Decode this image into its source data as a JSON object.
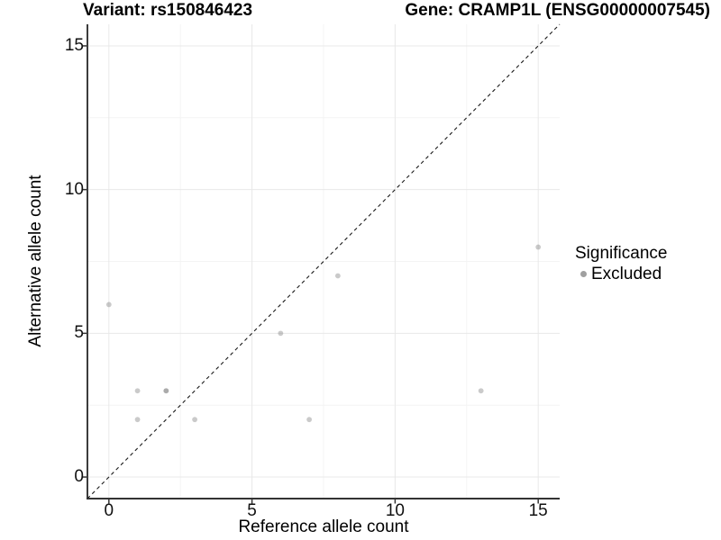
{
  "colors": {
    "background": "#ffffff",
    "grid_major": "#e8e8e8",
    "grid_minor": "#f4f4f4",
    "axis_line": "#333333",
    "tick_mark": "#333333",
    "identity_line": "#1a1a1a",
    "point_fill": "#808080",
    "legend_swatch": "#a0a0a0",
    "text": "#000000"
  },
  "chart_data": {
    "type": "scatter",
    "title_left": "Variant: rs150846423",
    "title_right": "Gene: CRAMP1L (ENSG00000007545)",
    "xlabel": "Reference allele count",
    "ylabel": "Alternative allele count",
    "xlim": [
      -0.75,
      15.75
    ],
    "ylim": [
      -0.75,
      15.75
    ],
    "xticks": [
      0,
      5,
      10,
      15
    ],
    "yticks": [
      0,
      5,
      10,
      15
    ],
    "minor_gridlines_x": [
      2.5,
      7.5,
      12.5
    ],
    "minor_gridlines_y": [
      2.5,
      7.5,
      12.5
    ],
    "grid": "major+minor",
    "identity_line": {
      "style": "dashed",
      "slope": 1,
      "intercept": 0
    },
    "points": [
      {
        "x": 0,
        "y": 6
      },
      {
        "x": 1,
        "y": 2
      },
      {
        "x": 1,
        "y": 3
      },
      {
        "x": 2,
        "y": 3
      },
      {
        "x": 2,
        "y": 3
      },
      {
        "x": 3,
        "y": 2
      },
      {
        "x": 6,
        "y": 5
      },
      {
        "x": 7,
        "y": 2
      },
      {
        "x": 8,
        "y": 7
      },
      {
        "x": 13,
        "y": 3
      },
      {
        "x": 15,
        "y": 8
      }
    ],
    "point_style": {
      "radius": 2.9,
      "opacity": 0.42
    },
    "legend": {
      "title": "Significance",
      "position": "right",
      "items": [
        {
          "label": "Excluded"
        }
      ]
    }
  }
}
